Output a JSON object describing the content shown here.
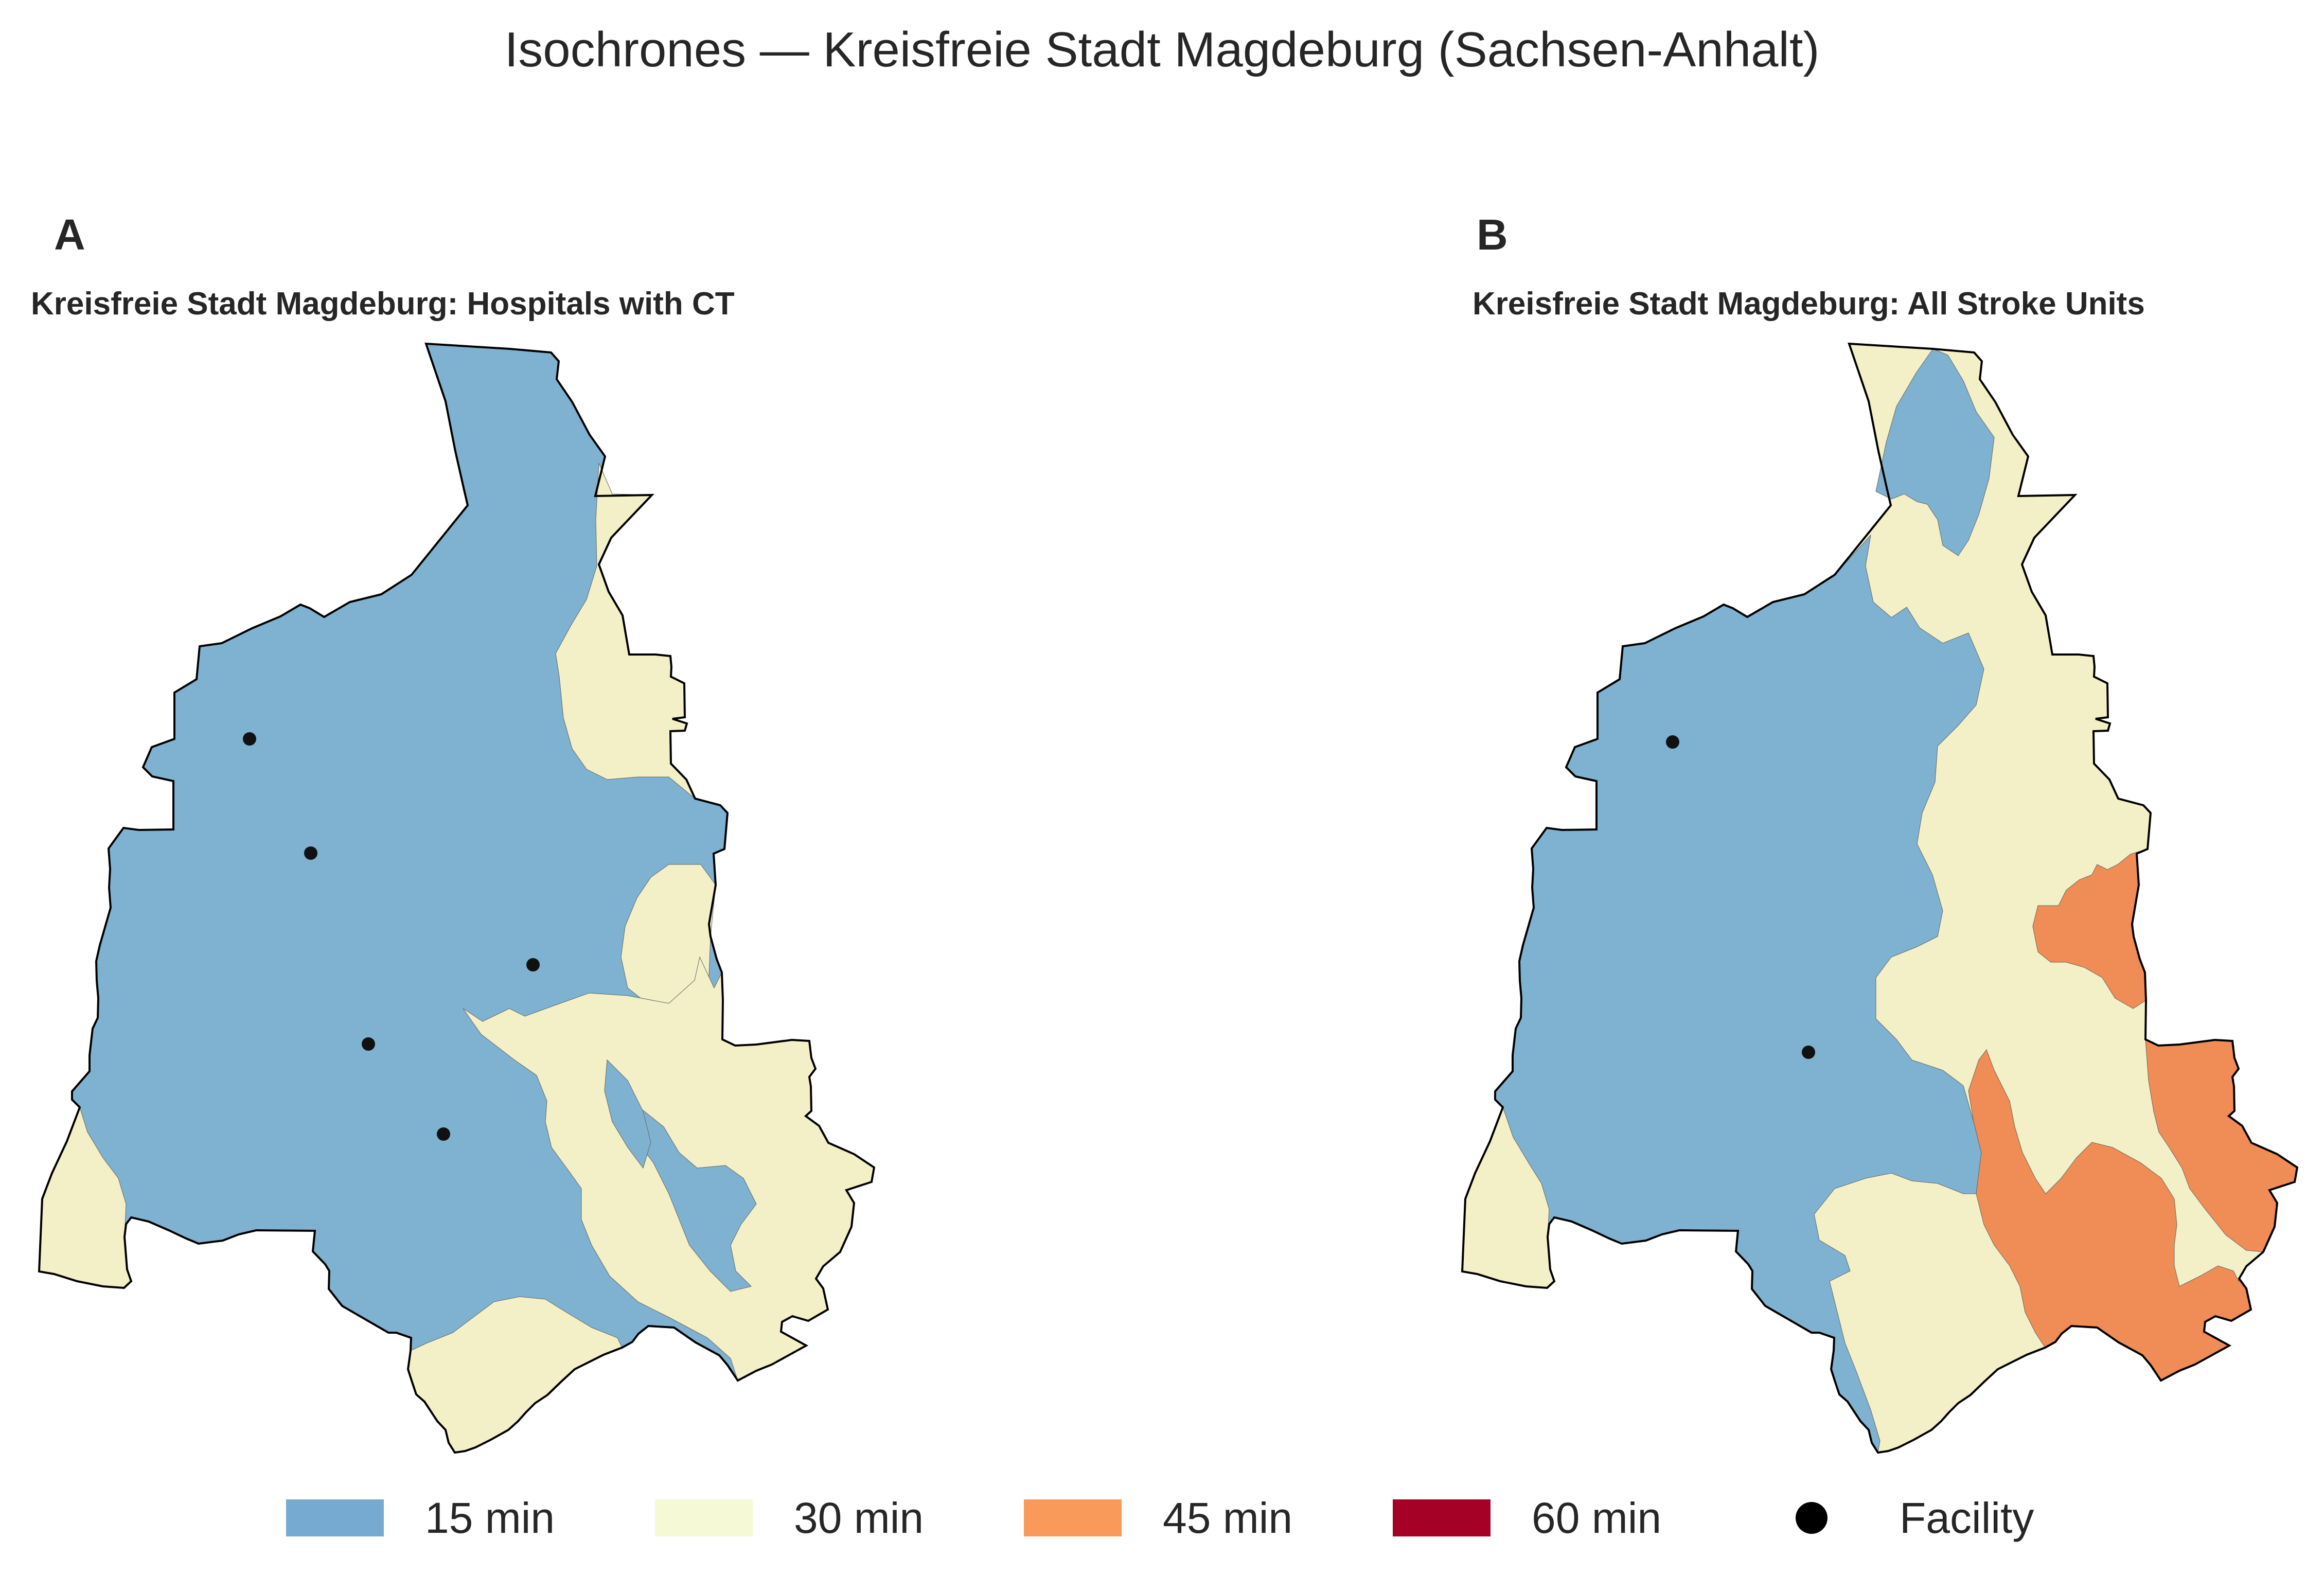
{
  "figure": {
    "title": "Isochrones — Kreisfreie Stadt Magdeburg (Sachsen-Anhalt)"
  },
  "colors": {
    "15 min": "#7fb1d0",
    "30 min": "#f3efc6",
    "45 min": "#f08c55",
    "60 min": "#a50026",
    "facility": "#111111",
    "boundary": "#000000"
  },
  "legend": {
    "items": [
      {
        "label": "15 min",
        "color": "#76aad0"
      },
      {
        "label": "30 min",
        "color": "#f6f9d6"
      },
      {
        "label": "45 min",
        "color": "#f99a5a"
      },
      {
        "label": "60 min",
        "color": "#a50026"
      },
      {
        "label": "Facility",
        "color": "#000000",
        "marker": "dot"
      }
    ]
  },
  "panels": [
    {
      "letter": "A",
      "title": "Kreisfreie Stadt Magdeburg: Hospitals with CT",
      "facility_count": 5,
      "zones_present": [
        "15 min",
        "30 min"
      ]
    },
    {
      "letter": "B",
      "title": "Kreisfreie Stadt Magdeburg: All Stroke Units",
      "facility_count": 2,
      "zones_present": [
        "15 min",
        "30 min",
        "45 min"
      ]
    }
  ]
}
